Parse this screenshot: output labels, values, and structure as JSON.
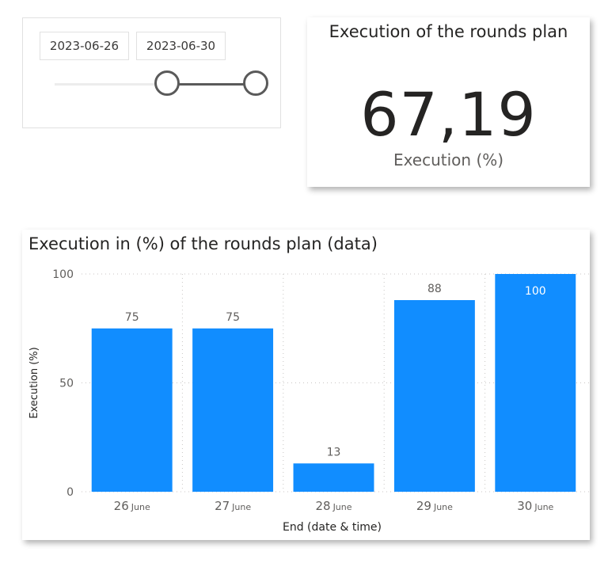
{
  "slicer": {
    "start_date": "2023-06-26",
    "end_date": "2023-06-30",
    "range_start_fraction": 0.55,
    "range_end_fraction": 1.0
  },
  "card": {
    "title": "Execution of the rounds plan",
    "value": "67,19",
    "label": "Execution (%)"
  },
  "colors": {
    "bar": "#118dff",
    "gridline": "#c8c6c4",
    "slider": "#5a5a5a"
  },
  "chart_data": {
    "type": "bar",
    "title": "Execution in (%) of the rounds plan (data)",
    "xlabel": "End (date & time)",
    "ylabel": "Execution (%)",
    "categories": [
      {
        "day": "26",
        "month": "June"
      },
      {
        "day": "27",
        "month": "June"
      },
      {
        "day": "28",
        "month": "June"
      },
      {
        "day": "29",
        "month": "June"
      },
      {
        "day": "30",
        "month": "June"
      }
    ],
    "values": [
      75,
      75,
      13,
      88,
      100
    ],
    "data_labels": [
      "75",
      "75",
      "13",
      "88",
      "100"
    ],
    "yticks": [
      "0",
      "50",
      "100"
    ],
    "ylim": [
      0,
      100
    ],
    "grid": true
  }
}
